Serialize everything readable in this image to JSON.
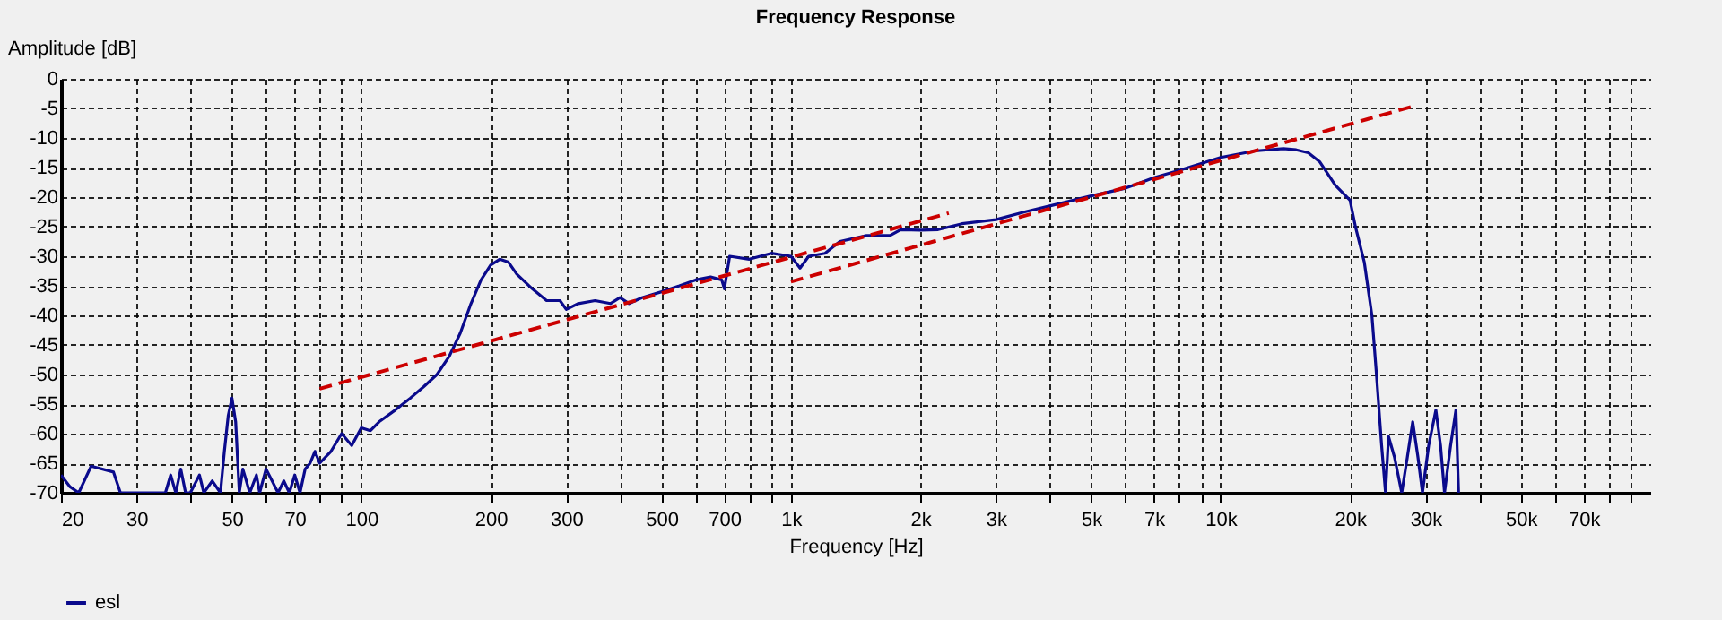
{
  "chart_data": {
    "type": "line",
    "title": "Frequency Response",
    "xlabel": "Frequency [Hz]",
    "ylabel": "Amplitude [dB]",
    "log": "x",
    "grid": true,
    "legend": "bottom",
    "marker": "none",
    "xlim": [
      20,
      100000
    ],
    "ylim": [
      -70,
      0
    ],
    "xticks": [
      20,
      30,
      {
        "value": 40,
        "label": null
      },
      50,
      {
        "value": 60,
        "label": null
      },
      70,
      {
        "value": 80,
        "label": null
      },
      {
        "value": 90,
        "label": null
      },
      100,
      200,
      300,
      {
        "value": 400,
        "label": null
      },
      500,
      {
        "value": 600,
        "label": null
      },
      700,
      {
        "value": 800,
        "label": null
      },
      {
        "value": 900,
        "label": null
      },
      {
        "value": 1000,
        "label": "1k"
      },
      {
        "value": 2000,
        "label": "2k"
      },
      {
        "value": 3000,
        "label": "3k"
      },
      {
        "value": 4000,
        "label": null
      },
      {
        "value": 5000,
        "label": "5k"
      },
      {
        "value": 6000,
        "label": null
      },
      {
        "value": 7000,
        "label": "7k"
      },
      {
        "value": 8000,
        "label": null
      },
      {
        "value": 9000,
        "label": null
      },
      {
        "value": 10000,
        "label": "10k"
      },
      {
        "value": 20000,
        "label": "20k"
      },
      {
        "value": 30000,
        "label": "30k"
      },
      {
        "value": 40000,
        "label": null
      },
      {
        "value": 50000,
        "label": "50k"
      },
      {
        "value": 60000,
        "label": null
      },
      {
        "value": 70000,
        "label": "70k"
      },
      {
        "value": 80000,
        "label": null
      },
      {
        "value": 90000,
        "label": null
      }
    ],
    "yticks": [
      0,
      -5,
      -10,
      -15,
      -20,
      -25,
      -30,
      -35,
      -40,
      -45,
      -50,
      -55,
      -60,
      -65,
      -70
    ],
    "series": [
      {
        "name": "esl",
        "color": "#0a0a8c",
        "type": "line",
        "line_style": "solid",
        "x": [
          20,
          21,
          22,
          23.5,
          26.5,
          27.5,
          35,
          36,
          37,
          38,
          39,
          40,
          42,
          43,
          45,
          47,
          48,
          49,
          50,
          51,
          52,
          53,
          54,
          55,
          57,
          58,
          60,
          62,
          64,
          66,
          68,
          70,
          72,
          74,
          76,
          78,
          80,
          85,
          90,
          95,
          100,
          105,
          110,
          120,
          130,
          140,
          150,
          160,
          170,
          180,
          190,
          200,
          210,
          220,
          230,
          250,
          270,
          290,
          300,
          320,
          350,
          380,
          400,
          420,
          450,
          500,
          550,
          600,
          650,
          690,
          700,
          720,
          800,
          900,
          1000,
          1050,
          1100,
          1200,
          1300,
          1500,
          1700,
          1800,
          2000,
          2200,
          2500,
          3000,
          3500,
          4000,
          5000,
          6000,
          7000,
          8000,
          10000,
          12000,
          14000,
          15000,
          16000,
          17000,
          18500,
          20000,
          20600,
          21600,
          22500,
          23000,
          23700,
          24200,
          24600,
          25400,
          26400,
          27200,
          28000,
          28800,
          29500,
          30500,
          31700,
          32500,
          33200,
          34300,
          35300,
          35800
        ],
        "values": [
          -67,
          -69,
          -70,
          -65.5,
          -66.5,
          -70,
          -70,
          -67,
          -70,
          -66,
          -70,
          -70,
          -67,
          -70,
          -68,
          -70,
          -63,
          -57,
          -54,
          -58,
          -70,
          -66,
          -68,
          -70,
          -67,
          -70,
          -66,
          -68,
          -70,
          -68,
          -70,
          -67,
          -70,
          -66,
          -65,
          -63,
          -65,
          -63,
          -60,
          -62,
          -59,
          -59.5,
          -58,
          -56,
          -54,
          -52,
          -50,
          -47,
          -43,
          -38,
          -34,
          -31.5,
          -30.5,
          -31,
          -33,
          -35.5,
          -37.5,
          -37.5,
          -39,
          -38,
          -37.5,
          -38,
          -37,
          -38,
          -37,
          -36,
          -35,
          -34,
          -33.5,
          -34,
          -35.5,
          -30,
          -30.5,
          -29.5,
          -30,
          -32,
          -30,
          -29.5,
          -27.5,
          -26.5,
          -26.5,
          -25.5,
          -25.6,
          -25.5,
          -24.5,
          -23.8,
          -22.5,
          -21.5,
          -19.8,
          -18.5,
          -16.7,
          -15.5,
          -13.3,
          -12.2,
          -11.8,
          -12,
          -12.5,
          -14,
          -18,
          -20.5,
          -25,
          -31,
          -40,
          -49,
          -62,
          -70,
          -60.5,
          -64,
          -70,
          -64,
          -58,
          -64,
          -70,
          -62,
          -56,
          -62,
          -70,
          -62,
          -56,
          -70
        ]
      },
      {
        "color": "#cc0000",
        "type": "line",
        "line_style": "dashed",
        "x": [
          80,
          2330
        ],
        "values": [
          -52.4,
          -22.7
        ]
      },
      {
        "color": "#cc0000",
        "type": "line",
        "line_style": "dashed",
        "x": [
          1000,
          28500
        ],
        "values": [
          -34.3,
          -4.5
        ]
      }
    ]
  }
}
